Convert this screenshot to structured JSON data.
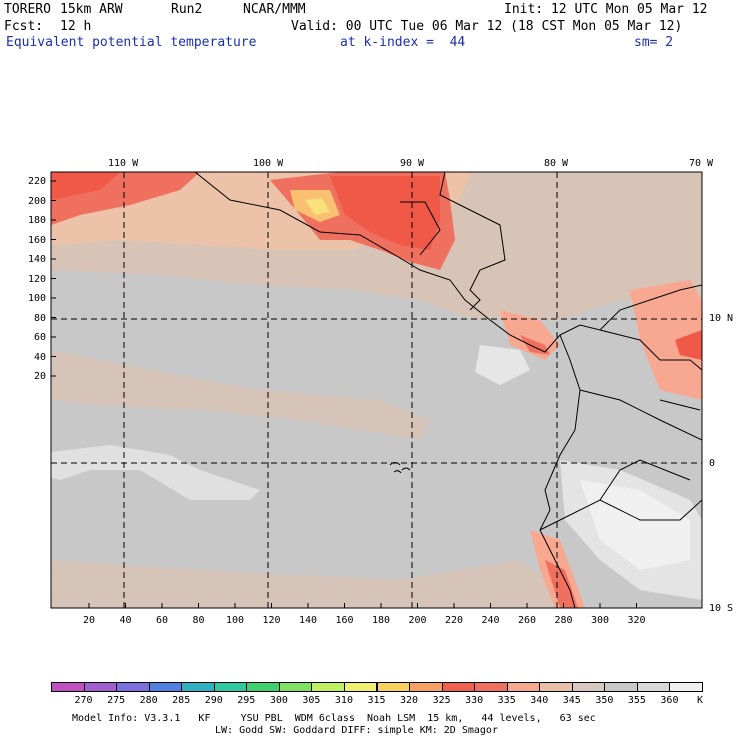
{
  "header": {
    "model": "TORERO",
    "resolution": "15km ARW",
    "run": "Run2",
    "org": "NCAR/MMM",
    "init": "Init: 12 UTC Mon 05 Mar 12",
    "fcst_label": "Fcst:",
    "fcst_value": "12 h",
    "valid": "Valid: 00 UTC Tue 06 Mar 12 (18 CST Mon 05 Mar 12)",
    "field": "Equivalent potential temperature",
    "level": "at k-index =  44",
    "smooth": "sm= 2"
  },
  "map": {
    "lon_labels": [
      "110 W",
      "100 W",
      "90 W",
      "80 W",
      "70 W"
    ],
    "lat_labels": [
      "10 N",
      "0",
      "10 S"
    ],
    "y_ticks": [
      "20",
      "40",
      "60",
      "80",
      "100",
      "120",
      "140",
      "160",
      "180",
      "200",
      "220"
    ],
    "x_ticks": [
      "20",
      "40",
      "60",
      "80",
      "100",
      "120",
      "140",
      "160",
      "180",
      "200",
      "220",
      "240",
      "260",
      "280",
      "300",
      "320"
    ]
  },
  "colorbar": {
    "unit": "K",
    "labels": [
      "270",
      "275",
      "280",
      "285",
      "290",
      "295",
      "300",
      "305",
      "310",
      "315",
      "320",
      "325",
      "330",
      "335",
      "340",
      "345",
      "350",
      "355",
      "360"
    ],
    "colors": [
      "#c050c0",
      "#a060d0",
      "#7c70e0",
      "#5080e0",
      "#30b0c0",
      "#30c8a0",
      "#40d070",
      "#80e060",
      "#c0f060",
      "#f0f070",
      "#f8d060",
      "#f8a060",
      "#f06050",
      "#f07060",
      "#f8a890",
      "#e8c0a8",
      "#d8c8c0",
      "#c8c8c8",
      "#d8d8d8",
      "#f0f0f0"
    ]
  },
  "footer": {
    "line1": "Model Info: V3.3.1   KF     YSU PBL  WDM 6class  Noah LSM  15 km,   44 levels,   63 sec",
    "line2": "LW: Godd SW: Goddard DIFF: simple KM: 2D Smagor"
  }
}
